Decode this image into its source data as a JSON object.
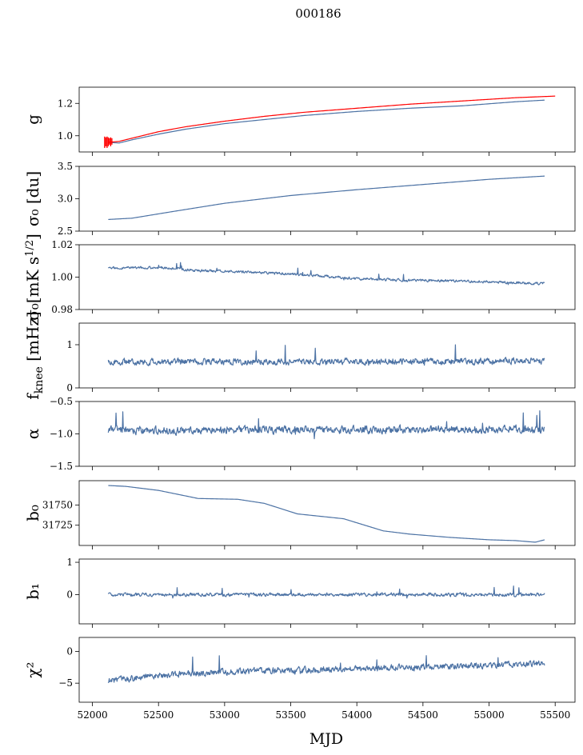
{
  "figure": {
    "suptitle": "000186",
    "xlabel": "MJD"
  },
  "chart_data": {
    "type": "line",
    "x_range": [
      51900,
      55650
    ],
    "x_ticks": [
      52000,
      52500,
      53000,
      53500,
      54000,
      54500,
      55000,
      55500
    ],
    "x_start": 52120,
    "x_end": 55420,
    "colors": {
      "series": "#4c72a4",
      "fit": "#ff0000"
    },
    "panels": [
      {
        "id": "g",
        "ylabel": "g",
        "ylim": [
          0.9,
          1.3
        ],
        "yticks": [
          1.0,
          1.2
        ],
        "ytick_labels": [
          "1.0",
          "1.2"
        ],
        "series": [
          {
            "color": "#4c72a4",
            "style": "smooth",
            "points": [
              [
                52120,
                0.96
              ],
              [
                52200,
                0.955
              ],
              [
                52300,
                0.975
              ],
              [
                52500,
                1.01
              ],
              [
                52700,
                1.04
              ],
              [
                53000,
                1.075
              ],
              [
                53300,
                1.1
              ],
              [
                53600,
                1.125
              ],
              [
                54000,
                1.15
              ],
              [
                54400,
                1.17
              ],
              [
                54800,
                1.185
              ],
              [
                55200,
                1.21
              ],
              [
                55420,
                1.22
              ]
            ]
          },
          {
            "color": "#ff0000",
            "style": "smooth",
            "width": 2.2,
            "points": [
              [
                52120,
                0.96
              ],
              [
                52200,
                0.965
              ],
              [
                52300,
                0.985
              ],
              [
                52500,
                1.025
              ],
              [
                52700,
                1.055
              ],
              [
                53000,
                1.09
              ],
              [
                53300,
                1.12
              ],
              [
                53600,
                1.145
              ],
              [
                54000,
                1.17
              ],
              [
                54400,
                1.195
              ],
              [
                54800,
                1.215
              ],
              [
                55200,
                1.235
              ],
              [
                55500,
                1.245
              ]
            ]
          }
        ]
      },
      {
        "id": "sigma0-du",
        "ylabel": "σ₀ [du]",
        "ylim": [
          2.5,
          3.5
        ],
        "yticks": [
          2.5,
          3.0,
          3.5
        ],
        "ytick_labels": [
          "2.5",
          "3.0",
          "3.5"
        ],
        "series": [
          {
            "color": "#4c72a4",
            "style": "smooth",
            "points": [
              [
                52120,
                2.68
              ],
              [
                52300,
                2.7
              ],
              [
                52600,
                2.8
              ],
              [
                53000,
                2.93
              ],
              [
                53500,
                3.05
              ],
              [
                54000,
                3.14
              ],
              [
                54500,
                3.22
              ],
              [
                55000,
                3.3
              ],
              [
                55420,
                3.35
              ]
            ]
          }
        ]
      },
      {
        "id": "sigma0-mk",
        "ylabel": "σ₀[mK s^1/2]",
        "ylim": [
          0.98,
          1.02
        ],
        "yticks": [
          0.98,
          1.0,
          1.02
        ],
        "ytick_labels": [
          "0.98",
          "1.00",
          "1.02"
        ],
        "series": [
          {
            "color": "#4c72a4",
            "style": "noisy",
            "noise": 0.0012,
            "seed": 3,
            "points": [
              [
                52120,
                1.0055
              ],
              [
                52500,
                1.006
              ],
              [
                52800,
                1.004
              ],
              [
                53200,
                1.003
              ],
              [
                53600,
                1.0015
              ],
              [
                54000,
                0.999
              ],
              [
                54400,
                0.998
              ],
              [
                54800,
                0.9975
              ],
              [
                55200,
                0.9965
              ],
              [
                55420,
                0.996
              ]
            ]
          }
        ]
      },
      {
        "id": "fknee",
        "ylabel": "f_knee [mHz]",
        "ylim": [
          0,
          1.5
        ],
        "yticks": [
          0,
          1
        ],
        "ytick_labels": [
          "0",
          "1"
        ],
        "series": [
          {
            "color": "#4c72a4",
            "style": "noisy",
            "noise": 0.11,
            "seed": 7,
            "points": [
              [
                52120,
                0.6
              ],
              [
                55420,
                0.62
              ]
            ]
          }
        ]
      },
      {
        "id": "alpha",
        "ylabel": "α",
        "ylim": [
          -1.5,
          -0.5
        ],
        "yticks": [
          -1.5,
          -1.0,
          -0.5
        ],
        "ytick_labels": [
          "−1.5",
          "−1.0",
          "−0.5"
        ],
        "series": [
          {
            "color": "#4c72a4",
            "style": "noisy",
            "noise": 0.09,
            "seed": 11,
            "points": [
              [
                52120,
                -0.95
              ],
              [
                55420,
                -0.93
              ]
            ]
          }
        ]
      },
      {
        "id": "b0",
        "ylabel": "b₀",
        "ylim": [
          31700,
          31780
        ],
        "yticks": [
          31725,
          31750
        ],
        "ytick_labels": [
          "31725",
          "31750"
        ],
        "series": [
          {
            "color": "#4c72a4",
            "style": "smooth",
            "points": [
              [
                52120,
                31774
              ],
              [
                52250,
                31773
              ],
              [
                52500,
                31768
              ],
              [
                52800,
                31758
              ],
              [
                53100,
                31757
              ],
              [
                53300,
                31752
              ],
              [
                53550,
                31739
              ],
              [
                53900,
                31733
              ],
              [
                54200,
                31718
              ],
              [
                54400,
                31714
              ],
              [
                54700,
                31710
              ],
              [
                55000,
                31707
              ],
              [
                55200,
                31706
              ],
              [
                55350,
                31704
              ],
              [
                55420,
                31707
              ]
            ]
          }
        ]
      },
      {
        "id": "b1",
        "ylabel": "b₁",
        "ylim": [
          -0.9,
          1.1
        ],
        "yticks": [
          0,
          1
        ],
        "ytick_labels": [
          "0",
          "1"
        ],
        "series": [
          {
            "color": "#4c72a4",
            "style": "noisy",
            "noise": 0.08,
            "seed": 19,
            "points": [
              [
                52120,
                0.0
              ],
              [
                55420,
                0.0
              ]
            ]
          }
        ]
      },
      {
        "id": "chi2",
        "ylabel": "χ²",
        "ylim": [
          -8,
          2.2
        ],
        "yticks": [
          -5,
          0
        ],
        "ytick_labels": [
          "−5",
          "0"
        ],
        "series": [
          {
            "color": "#4c72a4",
            "style": "noisy",
            "noise": 0.75,
            "seed": 23,
            "points": [
              [
                52120,
                -4.6
              ],
              [
                52500,
                -3.8
              ],
              [
                53000,
                -3.2
              ],
              [
                54000,
                -2.8
              ],
              [
                54700,
                -2.3
              ],
              [
                55420,
                -2.0
              ]
            ]
          }
        ]
      }
    ]
  }
}
